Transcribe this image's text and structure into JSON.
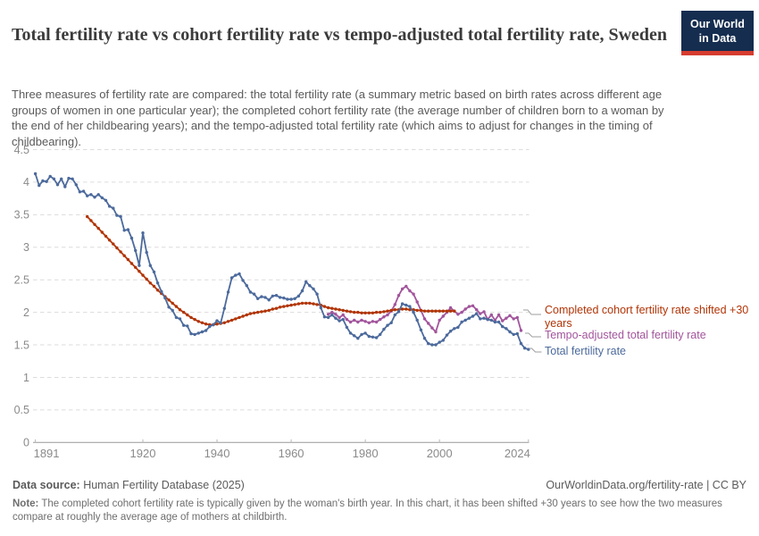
{
  "header": {
    "title": "Total fertility rate vs cohort fertility rate vs tempo-adjusted total fertility rate, Sweden",
    "subtitle": "Three measures of fertility rate are compared: the total fertility rate (a summary metric based on birth rates across different age groups of women in one particular year); the completed cohort fertility rate (the average number of children born to a woman by the end of her childbearing years); and the tempo-adjusted total fertility rate (which aims to adjust for changes in the timing of childbearing).",
    "logo": {
      "line1": "Our World",
      "line2": "in Data",
      "bg_color": "#152d4f",
      "stripe_color": "#d63c2f"
    }
  },
  "chart_data": {
    "type": "line",
    "title": "Total fertility rate vs cohort fertility rate vs tempo-adjusted total fertility rate, Sweden",
    "xlabel": "",
    "ylabel": "",
    "x_range": [
      1891,
      2024
    ],
    "ylim": [
      0,
      4.5
    ],
    "y_ticks": [
      0,
      0.5,
      1,
      1.5,
      2,
      2.5,
      3,
      3.5,
      4,
      4.5
    ],
    "x_ticks": [
      1891,
      1920,
      1940,
      1960,
      1980,
      2000,
      2024
    ],
    "grid": "horizontal-dashed",
    "legend_position": "right-of-plot connector labels",
    "colors": {
      "grid": "#dcdcdc",
      "axis": "#999999",
      "tick_label": "#8a8a8a",
      "connector": "#9e9e9e"
    },
    "series": [
      {
        "name": "Tempo-adjusted total fertility rate",
        "color": "#a2559c",
        "start_year": 1970,
        "values": [
          1.97,
          2.0,
          1.97,
          1.92,
          1.96,
          1.89,
          1.85,
          1.88,
          1.85,
          1.88,
          1.86,
          1.84,
          1.86,
          1.85,
          1.89,
          1.93,
          1.96,
          2.02,
          2.12,
          2.26,
          2.36,
          2.4,
          2.33,
          2.28,
          2.16,
          2.03,
          1.9,
          1.83,
          1.76,
          1.7,
          1.88,
          1.94,
          2.0,
          2.07,
          2.02,
          1.97,
          2.0,
          2.05,
          2.09,
          2.1,
          2.04,
          1.98,
          2.01,
          1.89,
          1.96,
          1.88,
          1.96,
          1.87,
          1.91,
          1.95,
          1.9,
          1.92,
          1.72
        ]
      },
      {
        "name": "Completed cohort fertility rate shifted +30 years",
        "color": "#b13507",
        "start_year": 1905,
        "values": [
          3.47,
          3.41,
          3.35,
          3.29,
          3.23,
          3.17,
          3.11,
          3.05,
          2.99,
          2.93,
          2.87,
          2.81,
          2.75,
          2.69,
          2.63,
          2.57,
          2.51,
          2.45,
          2.4,
          2.34,
          2.29,
          2.24,
          2.19,
          2.14,
          2.09,
          2.04,
          2.0,
          1.96,
          1.92,
          1.89,
          1.86,
          1.84,
          1.82,
          1.81,
          1.81,
          1.82,
          1.83,
          1.84,
          1.86,
          1.88,
          1.9,
          1.92,
          1.94,
          1.96,
          1.98,
          1.99,
          2.0,
          2.01,
          2.02,
          2.03,
          2.05,
          2.06,
          2.08,
          2.09,
          2.1,
          2.11,
          2.12,
          2.13,
          2.14,
          2.14,
          2.14,
          2.13,
          2.12,
          2.11,
          2.09,
          2.07,
          2.06,
          2.05,
          2.04,
          2.03,
          2.02,
          2.01,
          2.0,
          2.0,
          1.99,
          1.99,
          1.99,
          1.99,
          2.0,
          2.0,
          2.01,
          2.02,
          2.03,
          2.04,
          2.04,
          2.05,
          2.05,
          2.04,
          2.04,
          2.03,
          2.03,
          2.02,
          2.02,
          2.02,
          2.02,
          2.02,
          2.02,
          2.02,
          2.02,
          2.02
        ]
      },
      {
        "name": "Total fertility rate",
        "color": "#4c6a9c",
        "start_year": 1891,
        "values": [
          4.13,
          3.95,
          4.02,
          4.01,
          4.09,
          4.05,
          3.96,
          4.05,
          3.93,
          4.06,
          4.05,
          3.96,
          3.85,
          3.86,
          3.79,
          3.81,
          3.77,
          3.81,
          3.76,
          3.72,
          3.63,
          3.6,
          3.49,
          3.47,
          3.26,
          3.27,
          3.14,
          2.95,
          2.72,
          3.22,
          2.92,
          2.72,
          2.62,
          2.45,
          2.32,
          2.22,
          2.08,
          2.03,
          1.92,
          1.9,
          1.8,
          1.79,
          1.67,
          1.66,
          1.68,
          1.7,
          1.72,
          1.78,
          1.81,
          1.87,
          1.84,
          2.06,
          2.31,
          2.53,
          2.57,
          2.59,
          2.49,
          2.41,
          2.31,
          2.28,
          2.21,
          2.24,
          2.23,
          2.19,
          2.25,
          2.26,
          2.23,
          2.22,
          2.2,
          2.2,
          2.21,
          2.25,
          2.33,
          2.47,
          2.41,
          2.36,
          2.28,
          2.07,
          1.93,
          1.92,
          1.96,
          1.91,
          1.87,
          1.89,
          1.77,
          1.68,
          1.64,
          1.6,
          1.66,
          1.68,
          1.63,
          1.62,
          1.61,
          1.66,
          1.74,
          1.8,
          1.84,
          1.96,
          2.01,
          2.13,
          2.11,
          2.09,
          2.0,
          1.88,
          1.73,
          1.6,
          1.52,
          1.5,
          1.5,
          1.54,
          1.57,
          1.65,
          1.71,
          1.75,
          1.77,
          1.85,
          1.88,
          1.91,
          1.94,
          1.98,
          1.9,
          1.91,
          1.89,
          1.88,
          1.85,
          1.85,
          1.78,
          1.75,
          1.7,
          1.66,
          1.67,
          1.52,
          1.45,
          1.43
        ]
      }
    ]
  },
  "footer": {
    "source_label": "Data source:",
    "source_value": " Human Fertility Database (2025)",
    "attribution": "OurWorldinData.org/fertility-rate | CC BY",
    "note_label": "Note:",
    "note_value": " The completed cohort fertility rate is typically given by the woman's birth year. In this chart, it has been shifted +30 years to see how the two measures compare at roughly the average age of mothers at childbirth."
  }
}
